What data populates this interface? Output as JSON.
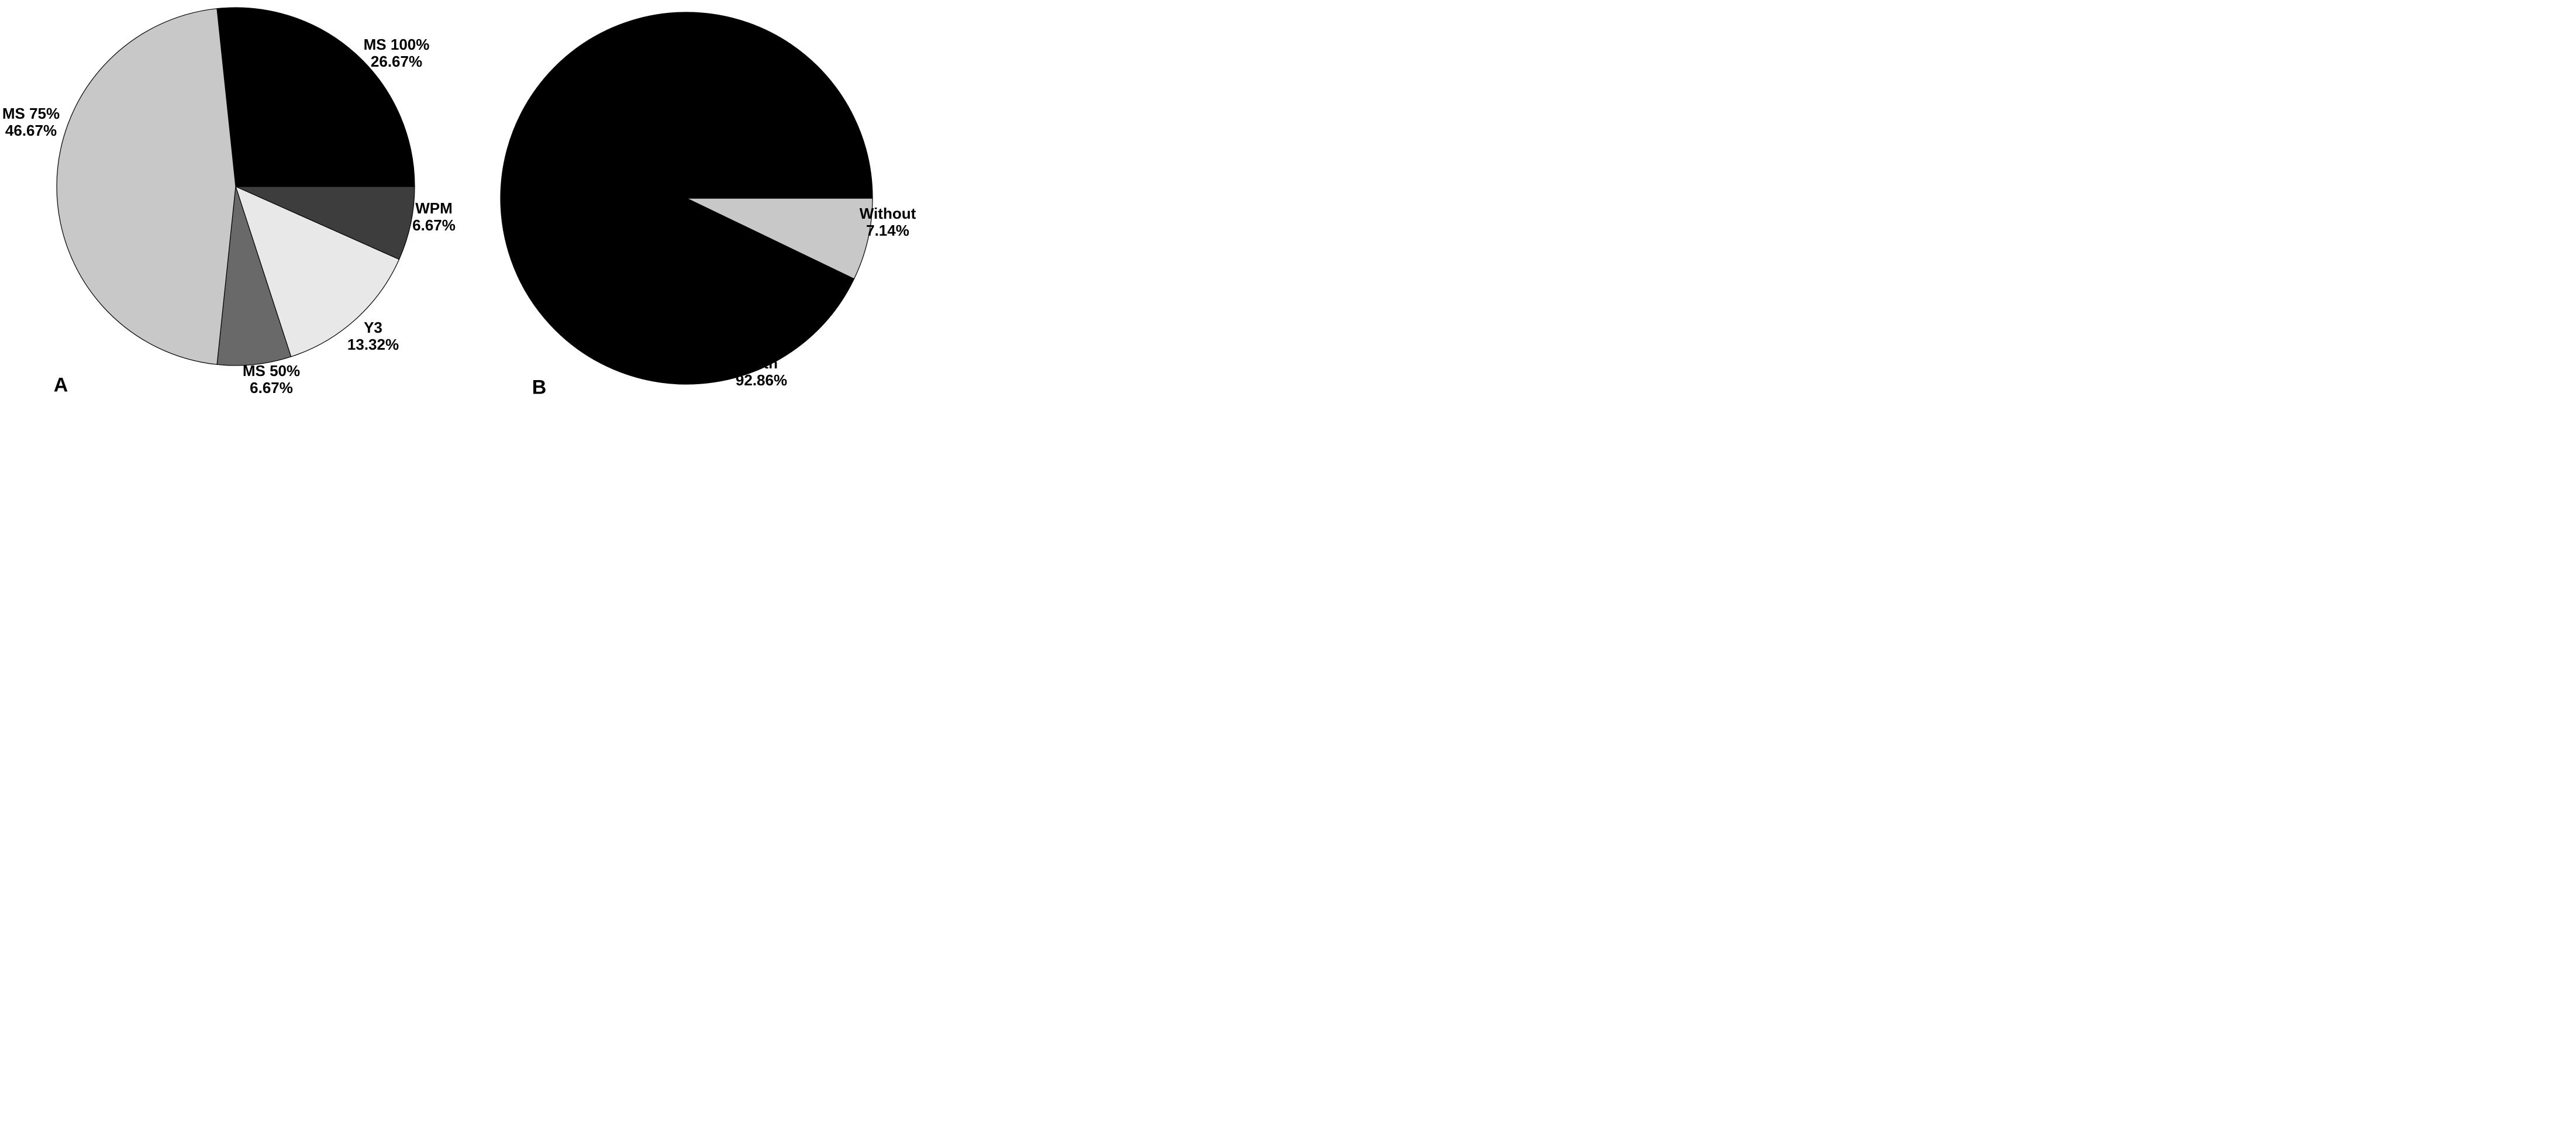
{
  "figure": {
    "background_color": "#ffffff",
    "text_color": "#000000"
  },
  "chart_data": [
    {
      "type": "pie",
      "panel_label": "A",
      "title": "",
      "direction": "clockwise",
      "start_angle_deg": -6,
      "label_position": "outside",
      "legend": "none",
      "categories": [
        "MS 100%",
        "WPM",
        "Y3",
        "MS 50%",
        "MS 75%"
      ],
      "values": [
        26.67,
        6.67,
        13.32,
        6.67,
        46.67
      ],
      "percent_labels": [
        "26.67%",
        "6.67%",
        "13.32%",
        "6.67%",
        "46.67%"
      ],
      "colors": [
        "#000000",
        "#3d3d3d",
        "#e8e8e8",
        "#696969",
        "#c8c8c8"
      ],
      "outline_color": "#000000"
    },
    {
      "type": "pie",
      "panel_label": "B",
      "title": "",
      "direction": "clockwise",
      "start_angle_deg": 90,
      "label_position": "outside",
      "legend": "none",
      "categories": [
        "Without",
        "With"
      ],
      "values": [
        7.14,
        92.86
      ],
      "percent_labels": [
        "7.14%",
        "92.86%"
      ],
      "colors": [
        "#c8c8c8",
        "#000000"
      ],
      "outline_color": "#000000"
    }
  ]
}
